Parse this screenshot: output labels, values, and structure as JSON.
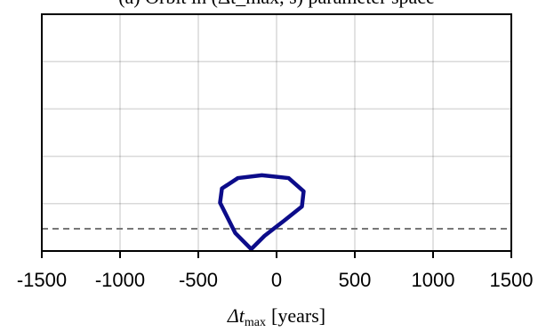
{
  "chart_data": {
    "type": "line",
    "title": "(a) Orbit in (Δt_max, s) parameter space",
    "xlabel": {
      "symbol": "Δt",
      "subscript": "max",
      "unit": "[years]"
    },
    "x": [
      -162,
      -264,
      -361,
      -349,
      -247,
      -94,
      77,
      173,
      162,
      48,
      -77,
      -162
    ],
    "series": [
      {
        "color": "#0c0c8a",
        "values": [
          0.04,
          0.38,
          1.02,
          1.32,
          1.54,
          1.6,
          1.54,
          1.26,
          0.94,
          0.64,
          0.32,
          0.04
        ]
      }
    ],
    "hline": 0.47,
    "xlim": [
      -1500,
      1500
    ],
    "xticks": [
      -1500,
      -1000,
      -500,
      0,
      500,
      1000,
      1500
    ],
    "ylim": [
      0,
      5
    ],
    "yticks": [
      1,
      2,
      3,
      4
    ],
    "grid": true
  }
}
